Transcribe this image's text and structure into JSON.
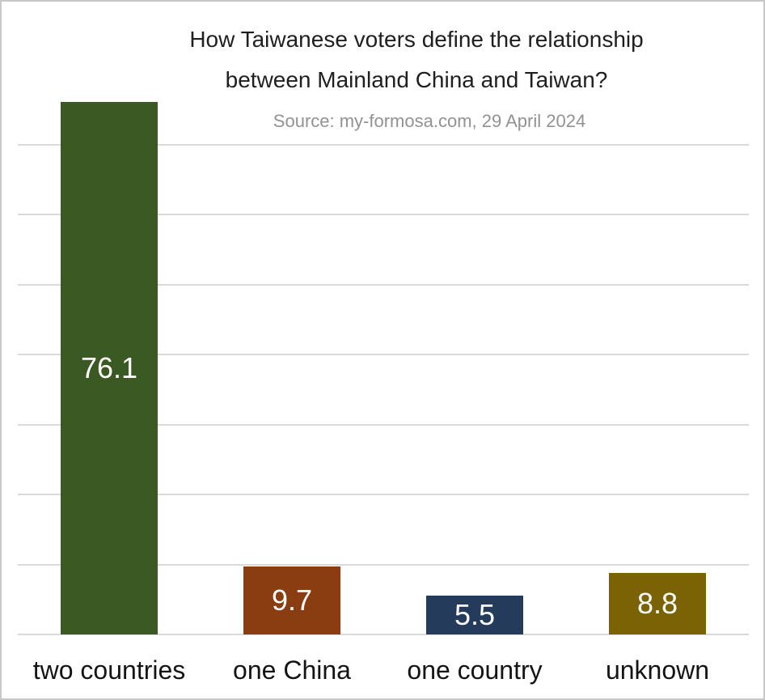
{
  "header": {
    "title_line1": "How Taiwanese voters define the relationship",
    "title_line2": "between Mainland China and Taiwan?",
    "subtitle": "Source: my-formosa.com, 29 April 2024"
  },
  "colors": {
    "title_text": "#1f1f1f",
    "subtitle_text": "#929292",
    "gridline": "#d9d9d9",
    "value_label_text": "#ffffff",
    "bar_green": "#3b5a23",
    "bar_brown": "#8a3d10",
    "bar_navy": "#243b5c",
    "bar_olive": "#7a6205"
  },
  "chart_data": {
    "type": "bar",
    "title": "How Taiwanese voters define the relationship between Mainland China and Taiwan?",
    "subtitle": "Source: my-formosa.com, 29 April 2024",
    "categories": [
      "two countries",
      "one China",
      "one country",
      "unknown"
    ],
    "values": [
      76.1,
      9.7,
      5.5,
      8.8
    ],
    "value_labels": [
      "76.1",
      "9.7",
      "5.5",
      "8.8"
    ],
    "bar_colors": [
      "#3b5a23",
      "#8a3d10",
      "#243b5c",
      "#7a6205"
    ],
    "xlabel": "",
    "ylabel": "",
    "ylim": [
      0,
      80
    ],
    "ytick_step": 10,
    "y_axis_labels_visible": false,
    "grid": true,
    "legend_position": "none",
    "value_labels_position": "center-inside"
  }
}
